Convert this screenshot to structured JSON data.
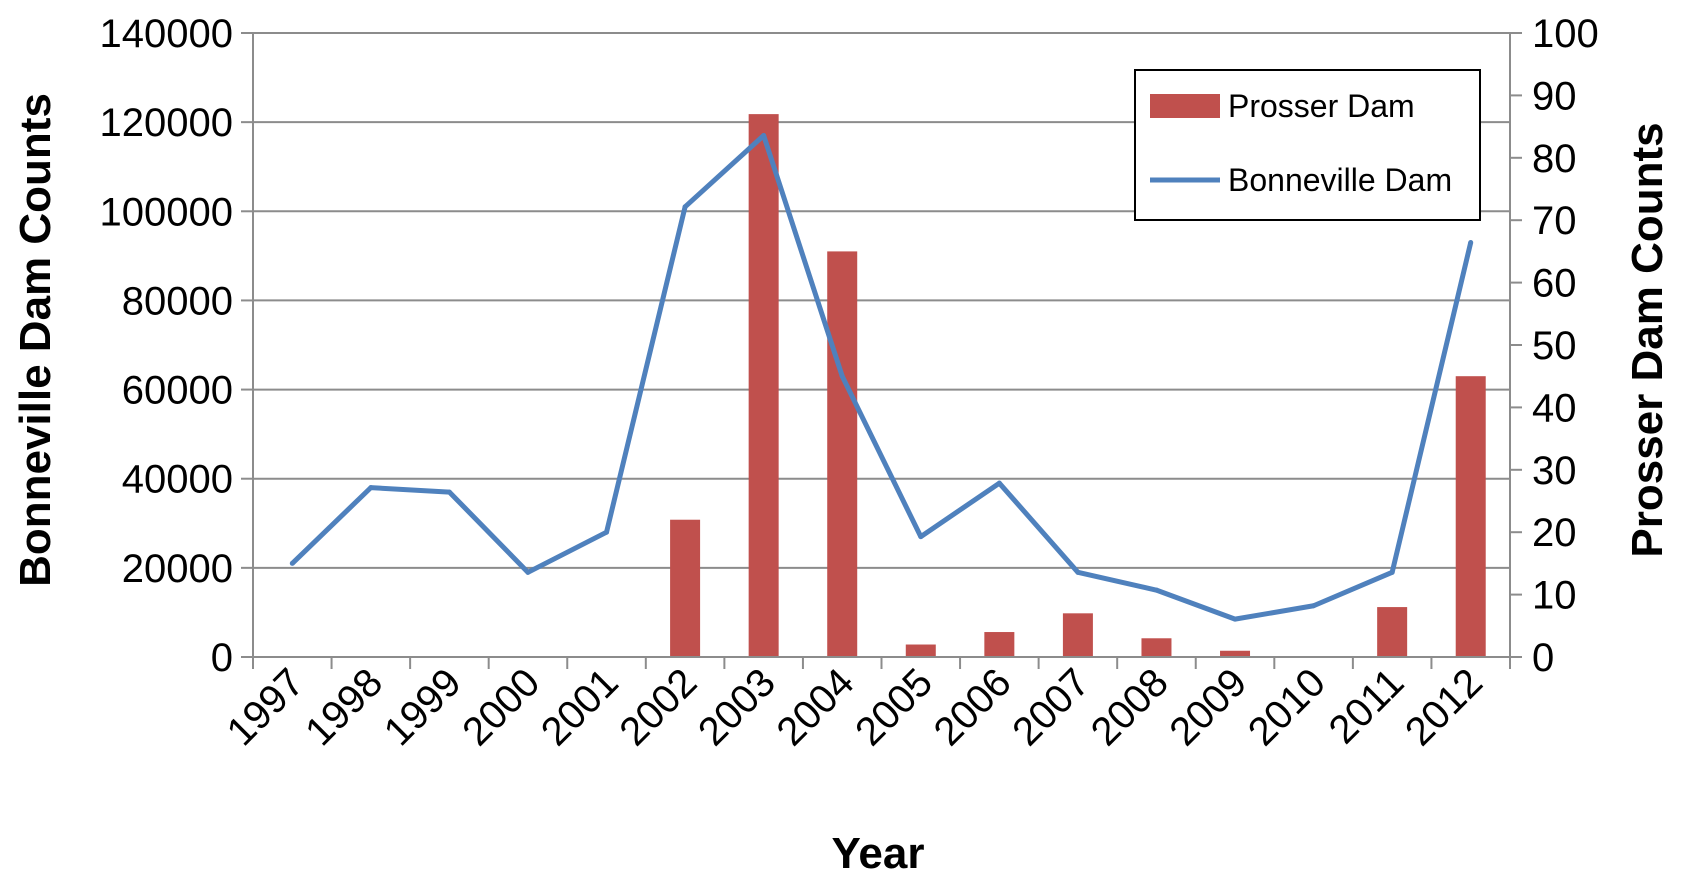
{
  "chart_data": {
    "type": "bar+line",
    "categories": [
      "1997",
      "1998",
      "1999",
      "2000",
      "2001",
      "2002",
      "2003",
      "2004",
      "2005",
      "2006",
      "2007",
      "2008",
      "2009",
      "2010",
      "2011",
      "2012"
    ],
    "series": [
      {
        "name": "Prosser Dam",
        "type": "bar",
        "axis": "right",
        "color": "#C0504D",
        "values": [
          0,
          0,
          0,
          0,
          0,
          22,
          87,
          65,
          2,
          4,
          7,
          3,
          1,
          0,
          8,
          45
        ]
      },
      {
        "name": "Bonneville Dam",
        "type": "line",
        "axis": "left",
        "color": "#4F81BD",
        "values": [
          21000,
          38000,
          37000,
          19000,
          28000,
          101000,
          117000,
          63000,
          27000,
          39000,
          19000,
          15000,
          8500,
          11500,
          19000,
          93000
        ]
      }
    ],
    "xlabel": "Year",
    "ylabel_left": "Bonneville Dam Counts",
    "ylabel_right": "Prosser Dam Counts",
    "ylim_left": [
      0,
      140000
    ],
    "yticks_left": [
      "0",
      "20000",
      "40000",
      "60000",
      "80000",
      "100000",
      "120000",
      "140000"
    ],
    "ylim_right": [
      0,
      100
    ],
    "yticks_right": [
      "0",
      "10",
      "20",
      "30",
      "40",
      "50",
      "60",
      "70",
      "80",
      "90",
      "100"
    ],
    "grid": true,
    "legend_position": "top-right"
  }
}
